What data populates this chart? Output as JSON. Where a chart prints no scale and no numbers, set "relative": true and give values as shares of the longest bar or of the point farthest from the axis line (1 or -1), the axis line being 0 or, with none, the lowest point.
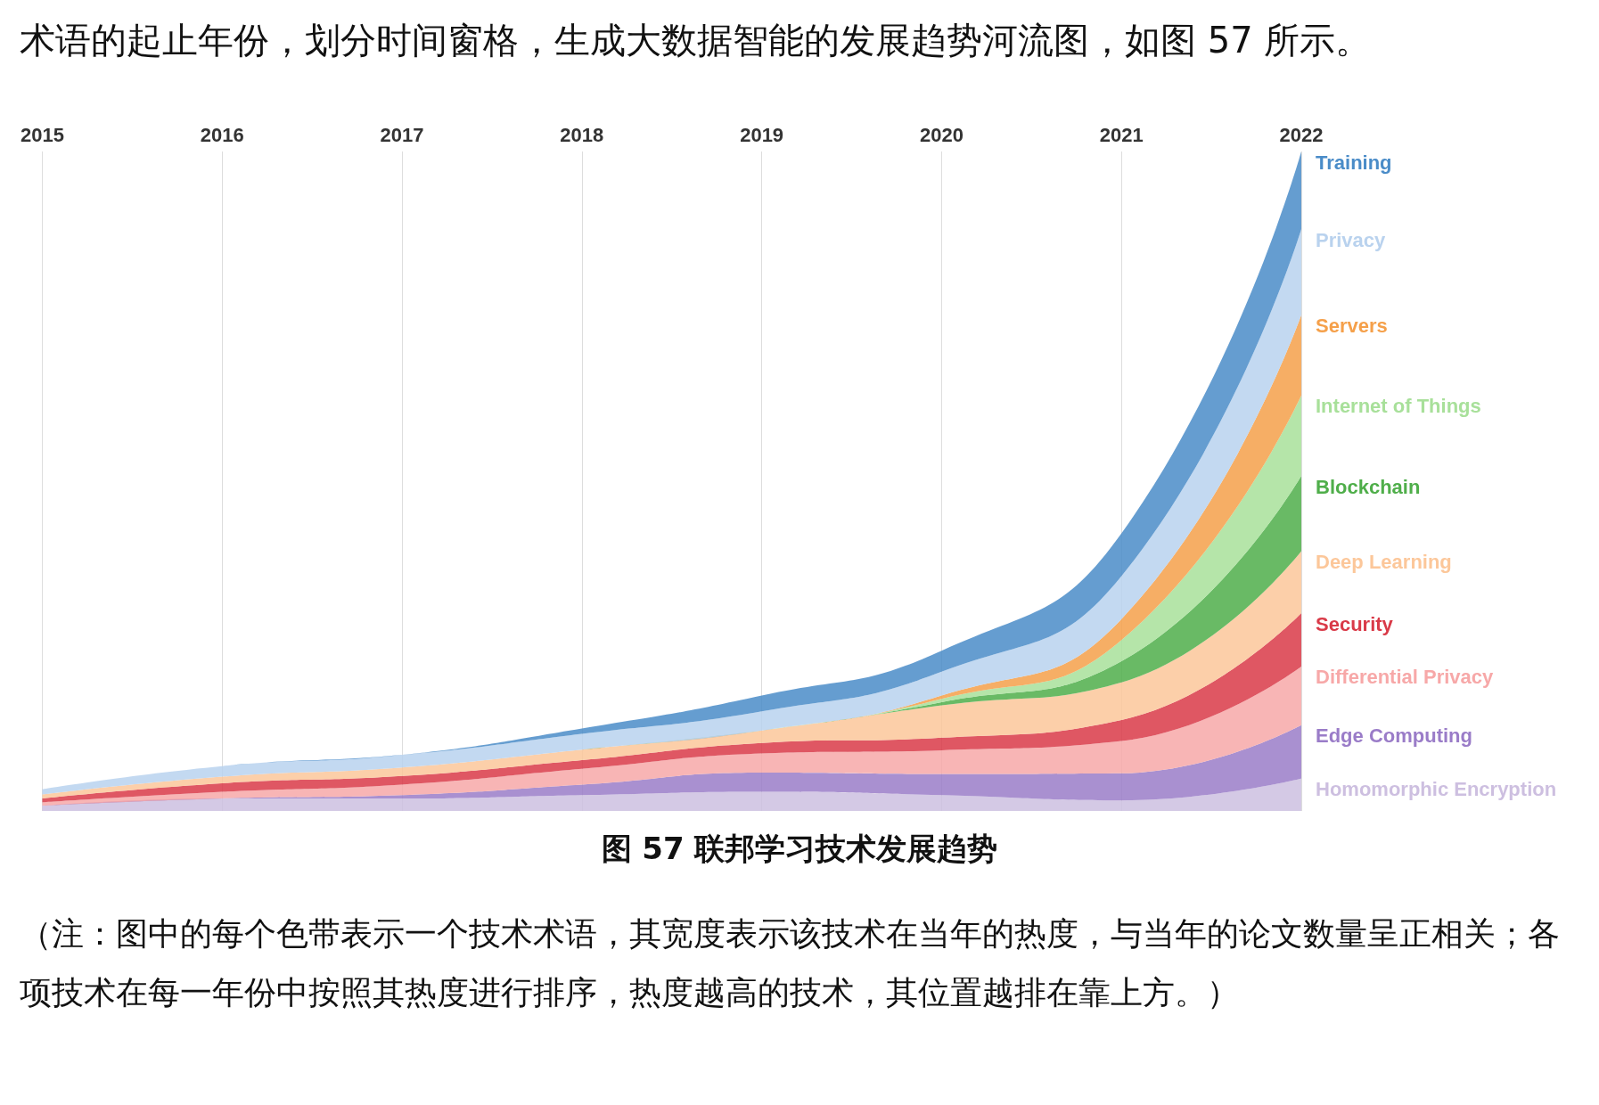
{
  "chart_data": {
    "type": "area",
    "stacked": true,
    "relative": true,
    "title": "图 57 联邦学习技术发展趋势",
    "categories": [
      "2015",
      "2016",
      "2017",
      "2018",
      "2019",
      "2020",
      "2021",
      "2022"
    ],
    "series": [
      {
        "name": "Homomorphic Encryption",
        "color": "#cdbfe0",
        "values": [
          0.008,
          0.019,
          0.019,
          0.024,
          0.029,
          0.024,
          0.016,
          0.049
        ]
      },
      {
        "name": "Edge Computing",
        "color": "#9a7cc8",
        "values": [
          0,
          0,
          0.005,
          0.016,
          0.029,
          0.032,
          0.041,
          0.081
        ]
      },
      {
        "name": "Differential Privacy",
        "color": "#f7a8a8",
        "values": [
          0.005,
          0.01,
          0.016,
          0.024,
          0.029,
          0.036,
          0.049,
          0.089
        ]
      },
      {
        "name": "Security",
        "color": "#d93a48",
        "values": [
          0.006,
          0.013,
          0.013,
          0.013,
          0.016,
          0.019,
          0.032,
          0.081
        ]
      },
      {
        "name": "Deep Learning",
        "color": "#fcc79a",
        "values": [
          0.006,
          0.01,
          0.013,
          0.016,
          0.019,
          0.049,
          0.057,
          0.094
        ]
      },
      {
        "name": "Blockchain",
        "color": "#4fae4a",
        "values": [
          0,
          0,
          0,
          0,
          0,
          0.005,
          0.032,
          0.114
        ]
      },
      {
        "name": "Internet of Things",
        "color": "#a8e09a",
        "values": [
          0,
          0,
          0,
          0,
          0,
          0.005,
          0.032,
          0.122
        ]
      },
      {
        "name": "Servers",
        "color": "#f5a04a",
        "values": [
          0,
          0,
          0,
          0,
          0,
          0.005,
          0.032,
          0.122
        ]
      },
      {
        "name": "Privacy",
        "color": "#b9d2ee",
        "values": [
          0.008,
          0.016,
          0.019,
          0.024,
          0.029,
          0.036,
          0.065,
          0.13
        ]
      },
      {
        "name": "Training",
        "color": "#4a8cc8",
        "values": [
          0,
          0,
          0,
          0.008,
          0.024,
          0.032,
          0.065,
          0.118
        ]
      }
    ],
    "grid": "x",
    "legend": false,
    "annotations": [
      "术语的起止年份，划分时间窗格，生成大数据智能的发展趋势河流图，如图 57 所示。",
      "（注：图中的每个色带表示一个技术术语，其宽度表示该技术在当年的热度，与当年的论文数量呈正相关；各项技术在每一年份中按照其热度进行排序，热度越高的技术，其位置越排在靠上方。）"
    ]
  }
}
